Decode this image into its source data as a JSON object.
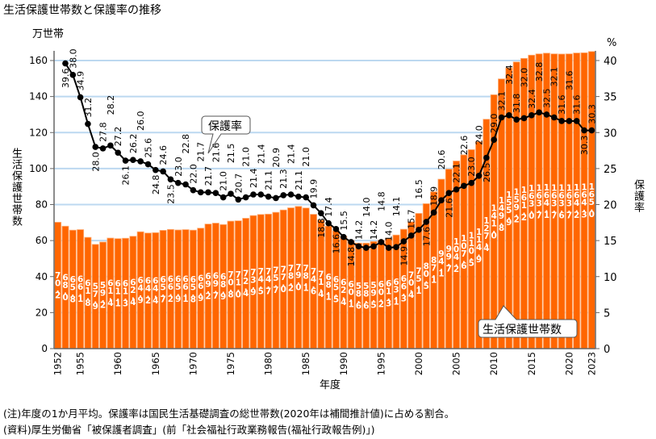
{
  "title": "生活保護世帯数と保護率の推移",
  "notes": [
    "(注)年度の1か月平均。保護率は国民生活基礎調査の総世帯数(2020年は補間推計値)に占める割合。",
    "(資料)厚生労働省「被保護者調査」(前「社会福祉行政業務報告(福祉行政報告例)」)"
  ],
  "chart_data": {
    "type": "bar+line",
    "xlabel": "年度",
    "y_left_unit": "万世帯",
    "y_left_label": "生活保護世帯数",
    "y_right_unit": "%",
    "y_right_label": "保護率",
    "ylim_left": [
      0,
      160
    ],
    "ylim_right": [
      0,
      40
    ],
    "yticks_left": [
      0,
      20,
      40,
      60,
      80,
      100,
      120,
      140,
      160
    ],
    "yticks_right": [
      0,
      5,
      10,
      15,
      20,
      25,
      30,
      35,
      40
    ],
    "xtick_labels": [
      "1952",
      "1955",
      "1960",
      "1965",
      "1970",
      "1975",
      "1980",
      "1985",
      "1990",
      "1995",
      "2000",
      "2005",
      "2010",
      "2015",
      "2020",
      "2023"
    ],
    "grid": "horizontal",
    "colors": {
      "bar": "#ff6600",
      "bar_edge": "#ffb07a",
      "line": "#000000",
      "grid": "#bcd8f0",
      "bar_label": "#ffffff"
    },
    "years": [
      1952,
      1953,
      1954,
      1955,
      1956,
      1957,
      1958,
      1959,
      1960,
      1961,
      1962,
      1963,
      1964,
      1965,
      1966,
      1967,
      1968,
      1969,
      1970,
      1971,
      1972,
      1973,
      1974,
      1975,
      1976,
      1977,
      1978,
      1979,
      1980,
      1981,
      1982,
      1983,
      1984,
      1985,
      1986,
      1987,
      1988,
      1989,
      1990,
      1991,
      1992,
      1993,
      1994,
      1995,
      1996,
      1997,
      1998,
      1999,
      2000,
      2001,
      2002,
      2003,
      2004,
      2005,
      2006,
      2007,
      2008,
      2009,
      2010,
      2011,
      2012,
      2013,
      2014,
      2015,
      2016,
      2017,
      2018,
      2019,
      2020,
      2021,
      2022,
      2023
    ],
    "series": [
      {
        "name": "生活保護世帯数",
        "type": "bar",
        "axis": "left",
        "values": [
          70.2,
          68.0,
          65.8,
          66.1,
          61.8,
          57.9,
          59.2,
          61.4,
          61.1,
          61.3,
          62.4,
          64.9,
          64.2,
          64.4,
          65.7,
          66.2,
          65.9,
          66.1,
          65.8,
          66.9,
          69.2,
          69.7,
          68.9,
          70.8,
          71.0,
          72.4,
          73.9,
          74.5,
          74.7,
          75.7,
          77.0,
          78.2,
          79.0,
          78.1,
          74.6,
          71.4,
          68.1,
          65.5,
          62.4,
          60.1,
          58.6,
          58.6,
          59.5,
          60.2,
          61.3,
          63.1,
          66.3,
          70.4,
          75.1,
          80.5,
          87.1,
          94.1,
          99.7,
          104.2,
          107.6,
          110.5,
          114.9,
          127.4,
          141.0,
          149.8,
          155.9,
          159.2,
          161.2,
          163.0,
          163.7,
          164.1,
          163.7,
          163.6,
          163.7,
          164.2,
          164.3,
          165.0
        ]
      },
      {
        "name": "保護率",
        "type": "line",
        "axis": "right",
        "values": [
          null,
          39.6,
          38.0,
          34.9,
          31.2,
          28.0,
          27.8,
          28.2,
          27.2,
          26.1,
          26.2,
          26.0,
          25.6,
          24.8,
          24.6,
          23.5,
          23.0,
          22.8,
          22.0,
          21.7,
          21.7,
          21.6,
          21.0,
          21.5,
          20.7,
          21.0,
          21.4,
          21.4,
          21.1,
          20.9,
          21.3,
          21.4,
          21.1,
          21.0,
          19.9,
          18.8,
          17.4,
          16.6,
          15.5,
          14.8,
          14.2,
          14.0,
          14.2,
          14.8,
          14.0,
          14.1,
          14.9,
          15.7,
          16.5,
          17.6,
          18.9,
          20.6,
          21.6,
          22.1,
          22.6,
          23.0,
          24.0,
          26.5,
          29.0,
          32.1,
          32.4,
          31.8,
          32.0,
          32.4,
          32.8,
          32.5,
          32.1,
          31.6,
          31.6,
          31.6,
          30.3,
          30.3
        ]
      }
    ],
    "callouts": [
      "保護率",
      "生活保護世帯数"
    ]
  }
}
